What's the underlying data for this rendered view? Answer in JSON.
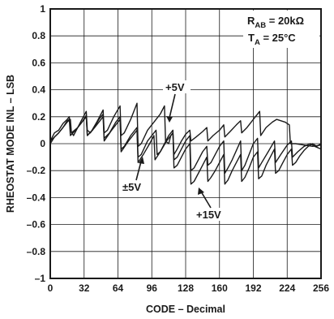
{
  "chart_data": {
    "type": "line",
    "title": "",
    "xlabel": "CODE – Decimal",
    "ylabel": "RHEOSTAT MODE INL – LSB",
    "xlim": [
      0,
      256
    ],
    "ylim": [
      -1,
      1
    ],
    "x_ticks": [
      0,
      32,
      64,
      96,
      128,
      160,
      192,
      224,
      256
    ],
    "y_ticks": [
      1,
      0.8,
      0.6,
      0.4,
      0.2,
      0,
      -0.2,
      -0.4,
      -0.6,
      -0.8,
      -1
    ],
    "y_tick_labels": [
      "1",
      "0.8",
      "0.6",
      "0.4",
      "0.2",
      "0",
      "–0.2",
      "–0.4",
      "–0.6",
      "–0.8",
      "–1"
    ],
    "grid": true,
    "annotations": [
      {
        "id": "rab",
        "main": "R",
        "sub": "AB",
        "rest": " = 20kΩ"
      },
      {
        "id": "ta",
        "main": "T",
        "sub": "A",
        "rest": " = 25°C"
      },
      {
        "id": "plus5",
        "text": "+5V",
        "x": 115,
        "y": 0.38
      },
      {
        "id": "pm5",
        "text": "±5V",
        "x": 83,
        "y": -0.36
      },
      {
        "id": "plus15",
        "text": "+15V",
        "x": 143,
        "y": -0.57
      }
    ],
    "series": [
      {
        "points": [
          [
            0,
            0.02
          ],
          [
            4,
            0.08
          ],
          [
            8,
            0.1
          ],
          [
            12,
            0.15
          ],
          [
            16,
            0.18
          ],
          [
            18,
            0.2
          ],
          [
            19,
            0.1
          ],
          [
            22,
            0.06
          ],
          [
            26,
            0.12
          ],
          [
            30,
            0.18
          ],
          [
            34,
            0.24
          ],
          [
            35,
            0.1
          ],
          [
            38,
            0.08
          ],
          [
            44,
            0.16
          ],
          [
            50,
            0.25
          ],
          [
            51,
            0.08
          ],
          [
            54,
            0.1
          ],
          [
            60,
            0.2
          ],
          [
            66,
            0.28
          ],
          [
            67,
            0.06
          ],
          [
            70,
            0.08
          ],
          [
            76,
            0.18
          ],
          [
            82,
            0.3
          ],
          [
            83,
            -0.02
          ],
          [
            86,
            0.0
          ],
          [
            92,
            0.1
          ],
          [
            98,
            0.16
          ],
          [
            104,
            0.22
          ],
          [
            108,
            0.28
          ],
          [
            109,
            0.02
          ],
          [
            112,
            0.0
          ],
          [
            114,
            0.06
          ],
          [
            116,
            0.08
          ],
          [
            117,
            -0.08
          ],
          [
            120,
            -0.04
          ],
          [
            124,
            0.02
          ],
          [
            128,
            0.07
          ],
          [
            132,
            0.1
          ],
          [
            133,
            0.02
          ],
          [
            138,
            0.05
          ],
          [
            144,
            0.09
          ],
          [
            148,
            0.12
          ],
          [
            149,
            0.02
          ],
          [
            154,
            0.06
          ],
          [
            160,
            0.1
          ],
          [
            164,
            0.14
          ],
          [
            165,
            0.05
          ],
          [
            170,
            0.09
          ],
          [
            176,
            0.14
          ],
          [
            180,
            0.17
          ],
          [
            181,
            0.08
          ],
          [
            186,
            0.12
          ],
          [
            192,
            0.18
          ],
          [
            198,
            0.24
          ],
          [
            199,
            0.06
          ],
          [
            204,
            0.12
          ],
          [
            210,
            0.16
          ],
          [
            214,
            0.18
          ],
          [
            222,
            0.16
          ],
          [
            226,
            0.14
          ],
          [
            227,
            0.0
          ],
          [
            232,
            0.0
          ],
          [
            240,
            -0.01
          ],
          [
            248,
            -0.02
          ],
          [
            256,
            -0.01
          ]
        ]
      },
      {
        "points": [
          [
            0,
            0.0
          ],
          [
            4,
            0.05
          ],
          [
            8,
            0.08
          ],
          [
            12,
            0.12
          ],
          [
            16,
            0.17
          ],
          [
            18,
            0.18
          ],
          [
            19,
            0.06
          ],
          [
            24,
            0.1
          ],
          [
            30,
            0.16
          ],
          [
            34,
            0.21
          ],
          [
            35,
            0.06
          ],
          [
            40,
            0.1
          ],
          [
            46,
            0.18
          ],
          [
            50,
            0.22
          ],
          [
            51,
            0.04
          ],
          [
            56,
            0.08
          ],
          [
            62,
            0.16
          ],
          [
            66,
            0.2
          ],
          [
            67,
            -0.04
          ],
          [
            70,
            -0.02
          ],
          [
            76,
            0.06
          ],
          [
            82,
            0.12
          ],
          [
            83,
            -0.1
          ],
          [
            86,
            -0.08
          ],
          [
            92,
            0.02
          ],
          [
            98,
            0.08
          ],
          [
            100,
            0.1
          ],
          [
            101,
            -0.08
          ],
          [
            104,
            -0.06
          ],
          [
            108,
            0.0
          ],
          [
            112,
            0.06
          ],
          [
            116,
            0.1
          ],
          [
            117,
            -0.12
          ],
          [
            120,
            -0.1
          ],
          [
            124,
            -0.04
          ],
          [
            128,
            0.02
          ],
          [
            132,
            0.06
          ],
          [
            133,
            -0.2
          ],
          [
            136,
            -0.18
          ],
          [
            140,
            -0.12
          ],
          [
            144,
            -0.06
          ],
          [
            148,
            -0.02
          ],
          [
            149,
            -0.16
          ],
          [
            152,
            -0.14
          ],
          [
            156,
            -0.08
          ],
          [
            160,
            -0.02
          ],
          [
            164,
            0.02
          ],
          [
            165,
            -0.22
          ],
          [
            168,
            -0.18
          ],
          [
            172,
            -0.12
          ],
          [
            176,
            -0.05
          ],
          [
            180,
            0.02
          ],
          [
            181,
            -0.2
          ],
          [
            184,
            -0.16
          ],
          [
            188,
            -0.08
          ],
          [
            192,
            0.0
          ],
          [
            196,
            0.04
          ],
          [
            197,
            -0.18
          ],
          [
            200,
            -0.14
          ],
          [
            206,
            -0.06
          ],
          [
            212,
            0.02
          ],
          [
            213,
            -0.14
          ],
          [
            218,
            -0.08
          ],
          [
            224,
            -0.01
          ],
          [
            228,
            0.02
          ],
          [
            229,
            -0.1
          ],
          [
            234,
            -0.06
          ],
          [
            240,
            -0.02
          ],
          [
            246,
            0.0
          ],
          [
            250,
            -0.02
          ],
          [
            256,
            -0.04
          ]
        ]
      },
      {
        "points": [
          [
            0,
            0.02
          ],
          [
            8,
            0.08
          ],
          [
            16,
            0.16
          ],
          [
            19,
            0.18
          ],
          [
            20,
            0.08
          ],
          [
            26,
            0.12
          ],
          [
            34,
            0.2
          ],
          [
            35,
            0.06
          ],
          [
            42,
            0.12
          ],
          [
            50,
            0.2
          ],
          [
            51,
            0.02
          ],
          [
            58,
            0.1
          ],
          [
            66,
            0.18
          ],
          [
            67,
            -0.06
          ],
          [
            74,
            0.02
          ],
          [
            82,
            0.1
          ],
          [
            83,
            -0.14
          ],
          [
            88,
            -0.08
          ],
          [
            94,
            0.0
          ],
          [
            98,
            0.06
          ],
          [
            99,
            -0.12
          ],
          [
            104,
            -0.06
          ],
          [
            110,
            0.02
          ],
          [
            116,
            0.08
          ],
          [
            117,
            -0.18
          ],
          [
            120,
            -0.16
          ],
          [
            124,
            -0.1
          ],
          [
            128,
            -0.04
          ],
          [
            132,
            0.0
          ],
          [
            133,
            -0.3
          ],
          [
            136,
            -0.28
          ],
          [
            140,
            -0.22
          ],
          [
            144,
            -0.16
          ],
          [
            148,
            -0.1
          ],
          [
            149,
            -0.28
          ],
          [
            152,
            -0.25
          ],
          [
            156,
            -0.2
          ],
          [
            160,
            -0.14
          ],
          [
            164,
            -0.08
          ],
          [
            165,
            -0.3
          ],
          [
            168,
            -0.27
          ],
          [
            172,
            -0.2
          ],
          [
            176,
            -0.14
          ],
          [
            180,
            -0.08
          ],
          [
            181,
            -0.28
          ],
          [
            184,
            -0.25
          ],
          [
            188,
            -0.18
          ],
          [
            192,
            -0.1
          ],
          [
            196,
            -0.06
          ],
          [
            197,
            -0.26
          ],
          [
            200,
            -0.24
          ],
          [
            204,
            -0.16
          ],
          [
            208,
            -0.1
          ],
          [
            212,
            -0.04
          ],
          [
            213,
            -0.22
          ],
          [
            216,
            -0.2
          ],
          [
            220,
            -0.14
          ],
          [
            224,
            -0.08
          ],
          [
            228,
            -0.04
          ],
          [
            229,
            -0.16
          ],
          [
            232,
            -0.14
          ],
          [
            236,
            -0.09
          ],
          [
            240,
            -0.05
          ],
          [
            244,
            -0.02
          ],
          [
            248,
            0.0
          ],
          [
            252,
            -0.02
          ],
          [
            256,
            0.0
          ]
        ]
      }
    ]
  }
}
